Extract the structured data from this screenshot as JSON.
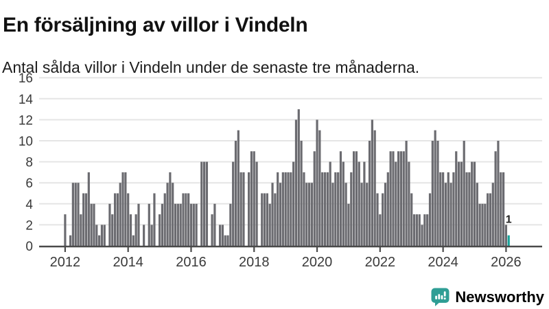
{
  "header": {
    "title": "En försäljning av villor i Vindeln",
    "subtitle": "Antal sålda villor i Vindeln under de senaste tre månaderna."
  },
  "chart_data": {
    "type": "bar",
    "title": "En försäljning av villor i Vindeln",
    "subtitle": "Antal sålda villor i Vindeln under de senaste tre månaderna.",
    "start_month": "2012-01",
    "end_month": "2026-02",
    "unit": "sålda villor (rullande tre månader)",
    "values": [
      3,
      0,
      1,
      6,
      6,
      6,
      3,
      5,
      5,
      7,
      4,
      4,
      2,
      1,
      2,
      2,
      0,
      4,
      3,
      5,
      5,
      6,
      7,
      7,
      5,
      3,
      1,
      3,
      4,
      0,
      2,
      0,
      4,
      2,
      5,
      0,
      3,
      4,
      5,
      6,
      7,
      6,
      4,
      4,
      4,
      5,
      5,
      5,
      4,
      4,
      4,
      0,
      8,
      8,
      8,
      0,
      3,
      4,
      0,
      2,
      2,
      1,
      1,
      4,
      8,
      10,
      11,
      7,
      7,
      0,
      7,
      9,
      9,
      8,
      0,
      5,
      5,
      5,
      4,
      6,
      5,
      7,
      6,
      7,
      7,
      7,
      7,
      8,
      12,
      13,
      10,
      7,
      6,
      6,
      6,
      9,
      12,
      11,
      7,
      7,
      7,
      8,
      6,
      7,
      7,
      9,
      8,
      6,
      4,
      7,
      9,
      9,
      8,
      6,
      8,
      6,
      10,
      12,
      11,
      5,
      3,
      5,
      6,
      7,
      9,
      9,
      8,
      9,
      9,
      9,
      10,
      8,
      5,
      3,
      3,
      3,
      2,
      3,
      3,
      5,
      10,
      11,
      10,
      7,
      7,
      6,
      7,
      6,
      7,
      9,
      8,
      8,
      10,
      7,
      7,
      8,
      8,
      6,
      4,
      4,
      4,
      5,
      5,
      6,
      9,
      10,
      7,
      7,
      2,
      1
    ],
    "highlight_last": true,
    "last_value_label": "1",
    "ylim": [
      0,
      16
    ],
    "yticks": [
      0,
      2,
      4,
      6,
      8,
      10,
      12,
      14,
      16
    ],
    "xticks": [
      "2012",
      "2014",
      "2016",
      "2018",
      "2020",
      "2022",
      "2024",
      "2026"
    ],
    "grid": "horizontal",
    "legend": "none",
    "colors": {
      "bar": "#6b6b70",
      "highlight": "#18a39a",
      "gridline": "#e5e5e5",
      "axis": "#4a4a4a",
      "tick_label": "#3a3a3a",
      "annotation": "#222222"
    }
  },
  "footer": {
    "brand": "Newsworthy",
    "brand_color": "#2f9e95",
    "logo_icon": "newsworthy-chart-bubble-icon"
  }
}
